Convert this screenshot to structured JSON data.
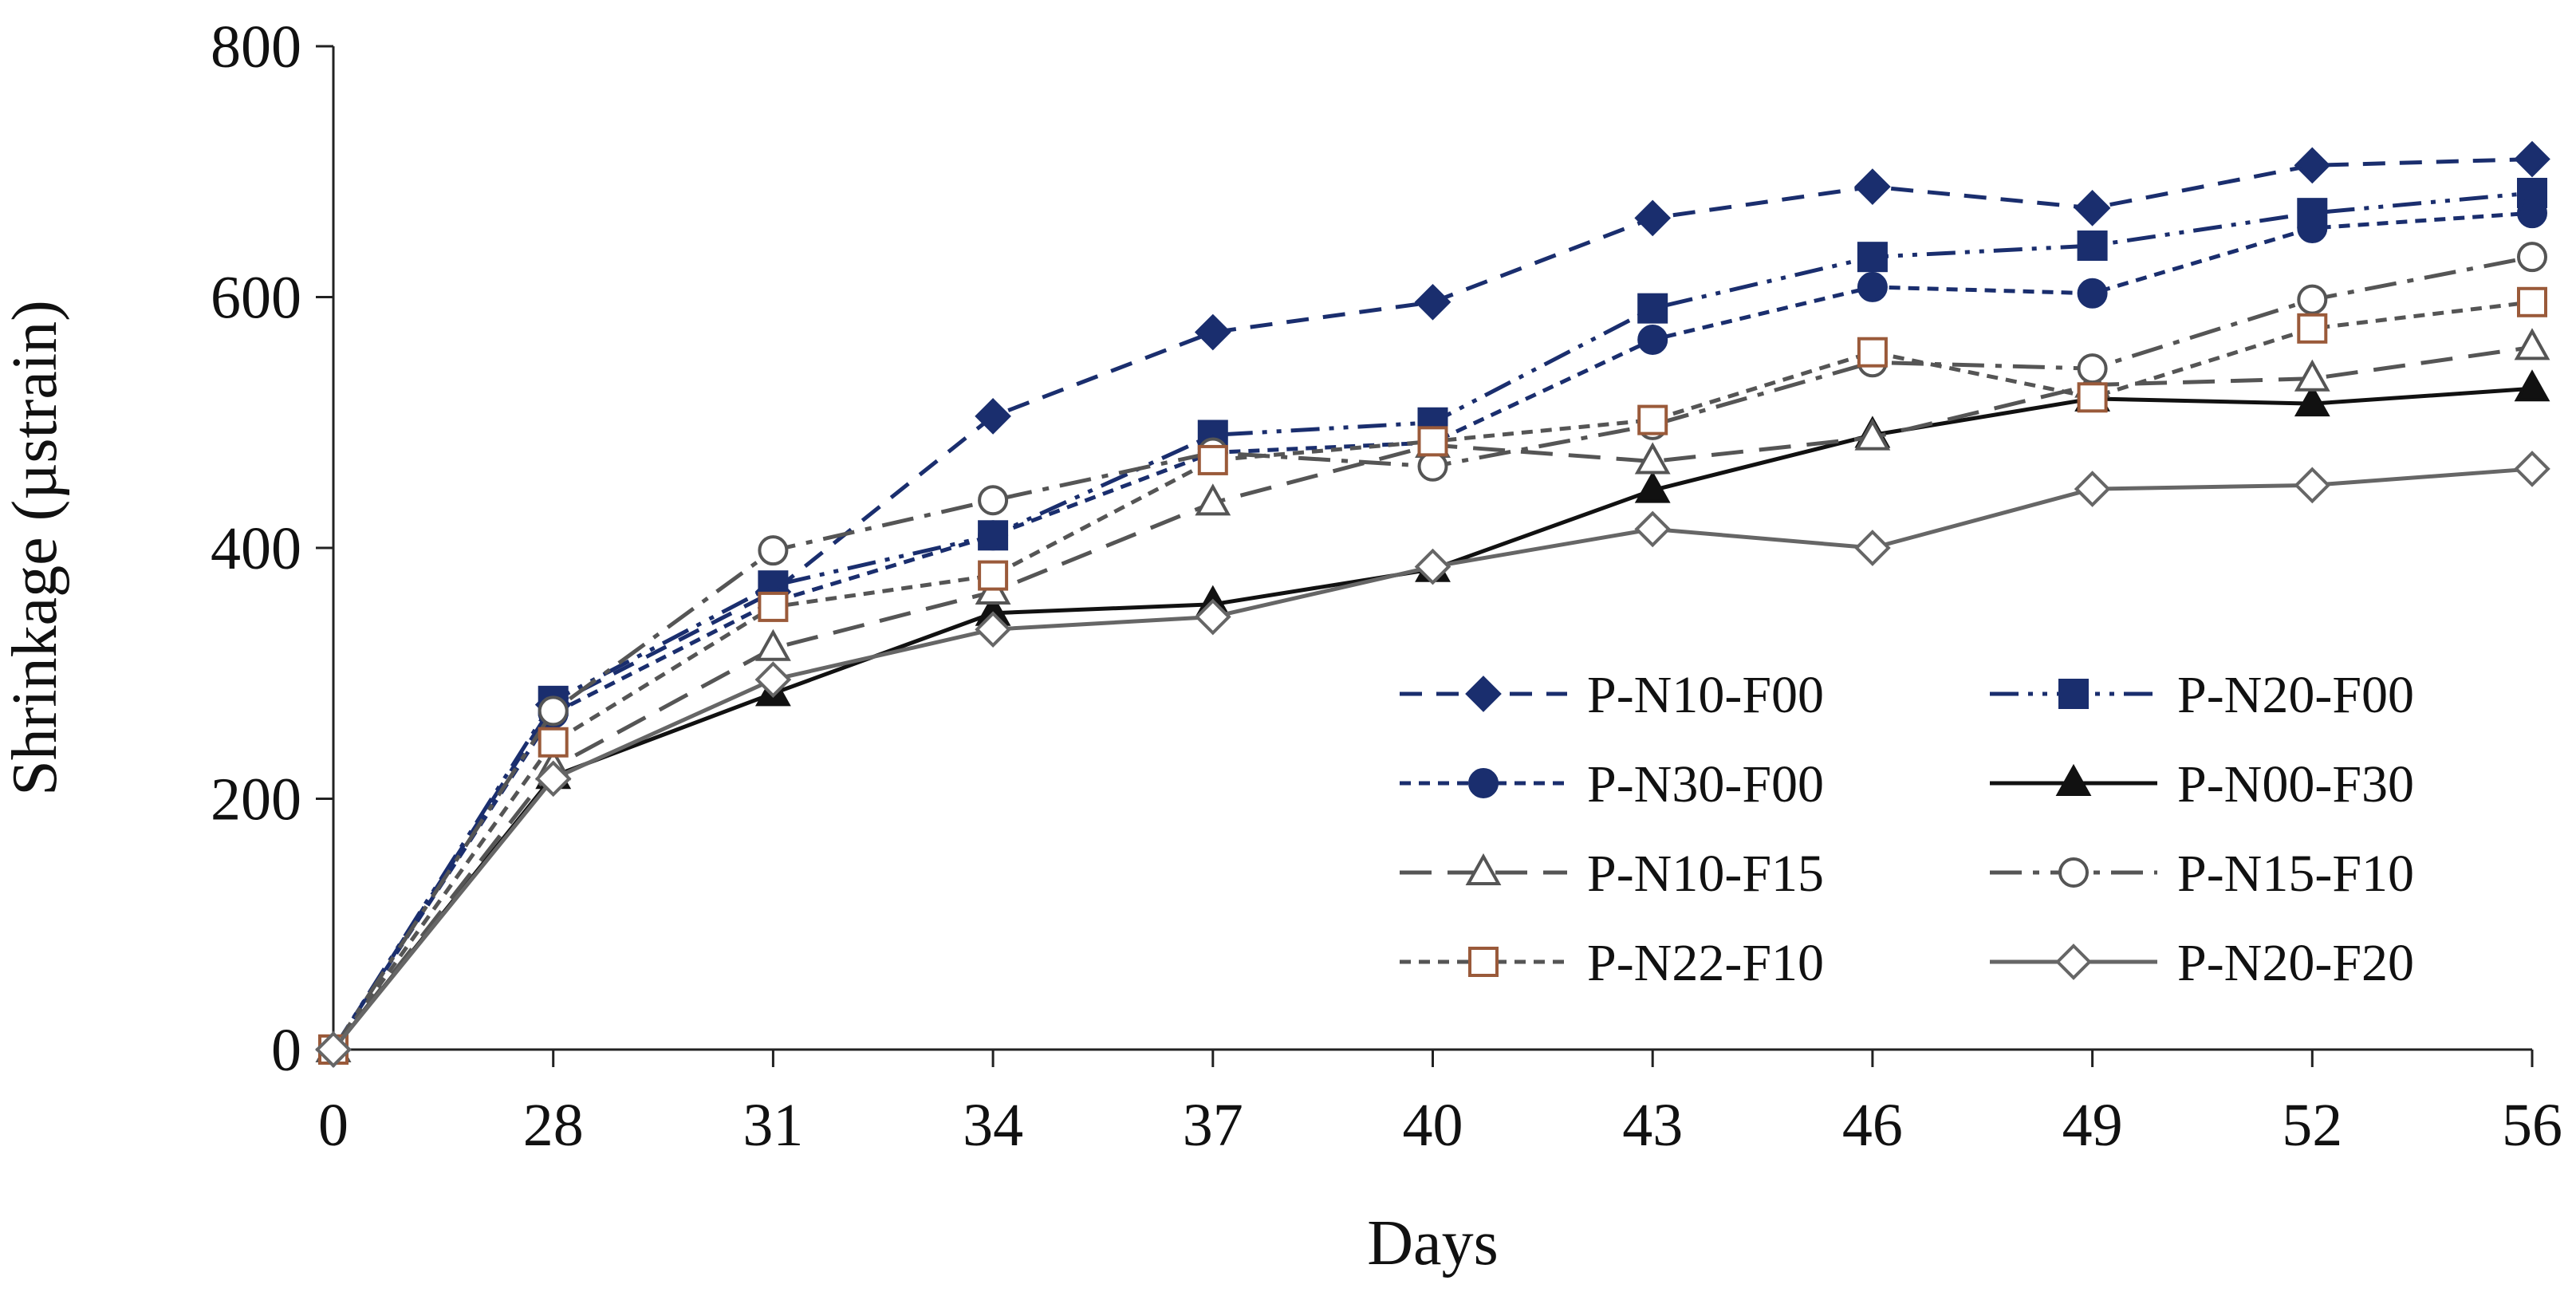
{
  "chart_data": {
    "type": "line",
    "title": "",
    "xlabel": "Days",
    "ylabel": "Shrinkage (µstrain)",
    "x": [
      0,
      28,
      31,
      34,
      37,
      40,
      43,
      46,
      49,
      52,
      56
    ],
    "x_tick_labels": [
      "0",
      "28",
      "31",
      "34",
      "37",
      "40",
      "43",
      "46",
      "49",
      "52",
      "56"
    ],
    "ylim": [
      0,
      800
    ],
    "y_ticks": [
      0,
      200,
      400,
      600,
      800
    ],
    "y_tick_labels": [
      "0",
      "200",
      "400",
      "600",
      "800"
    ],
    "grid": false,
    "legend_position": "bottom-right",
    "series": [
      {
        "name": "P-N10-F00",
        "color": "#1a2e6e",
        "dash": "dash",
        "marker": "diamond",
        "filled": true,
        "values": [
          0,
          275,
          365,
          505,
          572,
          596,
          663,
          688,
          671,
          705,
          710
        ]
      },
      {
        "name": "P-N20-F00",
        "color": "#1a2e6e",
        "dash": "dashdotdot",
        "marker": "square",
        "filled": true,
        "values": [
          0,
          278,
          370,
          410,
          490,
          500,
          591,
          632,
          641,
          667,
          683
        ]
      },
      {
        "name": "P-N30-F00",
        "color": "#1a2e6e",
        "dash": "shortdash",
        "marker": "circle",
        "filled": true,
        "values": [
          0,
          268,
          357,
          410,
          476,
          484,
          566,
          608,
          603,
          655,
          667
        ]
      },
      {
        "name": "P-N00-F30",
        "color": "#111111",
        "dash": "solid",
        "marker": "triangle",
        "filled": true,
        "values": [
          0,
          218,
          284,
          348,
          355,
          383,
          446,
          490,
          519,
          515,
          527
        ]
      },
      {
        "name": "P-N10-F15",
        "color": "#555555",
        "dash": "longdash",
        "marker": "triangle",
        "filled": false,
        "values": [
          0,
          225,
          320,
          365,
          436,
          482,
          469,
          488,
          530,
          535,
          560
        ]
      },
      {
        "name": "P-N15-F10",
        "color": "#555555",
        "dash": "longdashdot",
        "marker": "circle",
        "filled": false,
        "values": [
          0,
          270,
          398,
          438,
          476,
          465,
          498,
          548,
          543,
          598,
          632
        ]
      },
      {
        "name": "P-N22-F10",
        "color": "#555555",
        "dash": "shortdash",
        "marker": "square",
        "filled": false,
        "marker_color": "#9a5a3a",
        "values": [
          0,
          245,
          353,
          378,
          470,
          485,
          502,
          556,
          520,
          575,
          596
        ]
      },
      {
        "name": "P-N20-F20",
        "color": "#666666",
        "dash": "solid",
        "marker": "diamond",
        "filled": false,
        "values": [
          0,
          216,
          295,
          335,
          345,
          385,
          415,
          400,
          447,
          450,
          463
        ]
      }
    ]
  }
}
